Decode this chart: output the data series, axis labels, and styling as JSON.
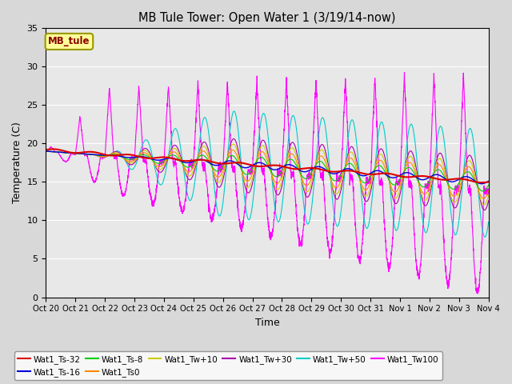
{
  "title": "MB Tule Tower: Open Water 1 (3/19/14-now)",
  "xlabel": "Time",
  "ylabel": "Temperature (C)",
  "ylim": [
    0,
    35
  ],
  "yticks": [
    0,
    5,
    10,
    15,
    20,
    25,
    30,
    35
  ],
  "xlim": [
    0,
    15
  ],
  "xtick_labels": [
    "Oct 20",
    "Oct 21",
    "Oct 22",
    "Oct 23",
    "Oct 24",
    "Oct 25",
    "Oct 26",
    "Oct 27",
    "Oct 28",
    "Oct 29",
    "Oct 30",
    "Oct 31",
    "Nov 1",
    "Nov 2",
    "Nov 3",
    "Nov 4"
  ],
  "bg_outer": "#d8d8d8",
  "bg_inner": "#e8e8e8",
  "series_colors": {
    "Wat1_Ts-32": "#dd0000",
    "Wat1_Ts-16": "#0000dd",
    "Wat1_Ts-8": "#00cc00",
    "Wat1_Ts0": "#ff8800",
    "Wat1_Tw+10": "#cccc00",
    "Wat1_Tw+30": "#aa00aa",
    "Wat1_Tw+50": "#00cccc",
    "Wat1_Tw100": "#ff00ff"
  },
  "legend_box_color": "#ffff99",
  "legend_box_edge": "#999900",
  "legend_label": "MB_tule"
}
